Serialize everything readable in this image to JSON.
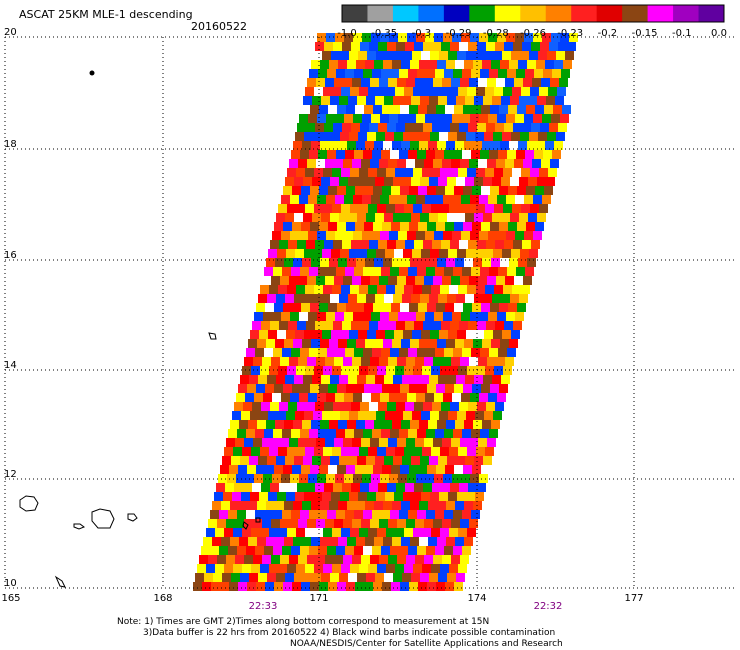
{
  "title": "ASCAT 25KM MLE-1 descending",
  "date": "20160522",
  "y_ticks": [
    "20",
    "18",
    "16",
    "14",
    "12",
    "10"
  ],
  "x_ticks": [
    "165",
    "168",
    "171",
    "174",
    "177"
  ],
  "times": [
    "22:33",
    "22:32"
  ],
  "colorbar": {
    "labels": [
      "-1.0",
      "-0.35",
      "-0.3",
      "-0.29",
      "-0.28",
      "-0.26",
      "-0.23",
      "-0.2",
      "-0.15",
      "-0.1",
      "0.0"
    ],
    "colors": [
      "#404040",
      "#a0a0a0",
      "#00c8ff",
      "#0070ff",
      "#0000c0",
      "#00a000",
      "#ffff00",
      "#ffc000",
      "#ff8000",
      "#ff2020",
      "#e00000",
      "#8b4513",
      "#ff00ff",
      "#a000c0",
      "#6000a0"
    ]
  },
  "notes": [
    "Note: 1) Times are GMT 2)Times along bottom correspond to measurement at 15N",
    "3)Data buffer is 22 hrs from 20160522 4) Black wind barbs indicate possible contamination",
    "NOAA/NESDIS/Center for Satellite Applications and Research"
  ],
  "swath_palette": {
    "north": [
      "#0040ff",
      "#0040ff",
      "#1060ff",
      "#ffd000",
      "#ffff00",
      "#ff8000",
      "#ff2020",
      "#00a000",
      "#8b4513",
      "#ff4000"
    ],
    "middle": [
      "#ff2020",
      "#ff0000",
      "#ff8000",
      "#ffd000",
      "#ffff00",
      "#0040ff",
      "#00a000",
      "#8b4513",
      "#ff00ff",
      "#ff4000"
    ],
    "south": [
      "#ff2020",
      "#ff0000",
      "#ff8000",
      "#ffd000",
      "#ffff00",
      "#ff00ff",
      "#8b4513",
      "#00a000",
      "#0040ff",
      "#ff4000"
    ]
  }
}
